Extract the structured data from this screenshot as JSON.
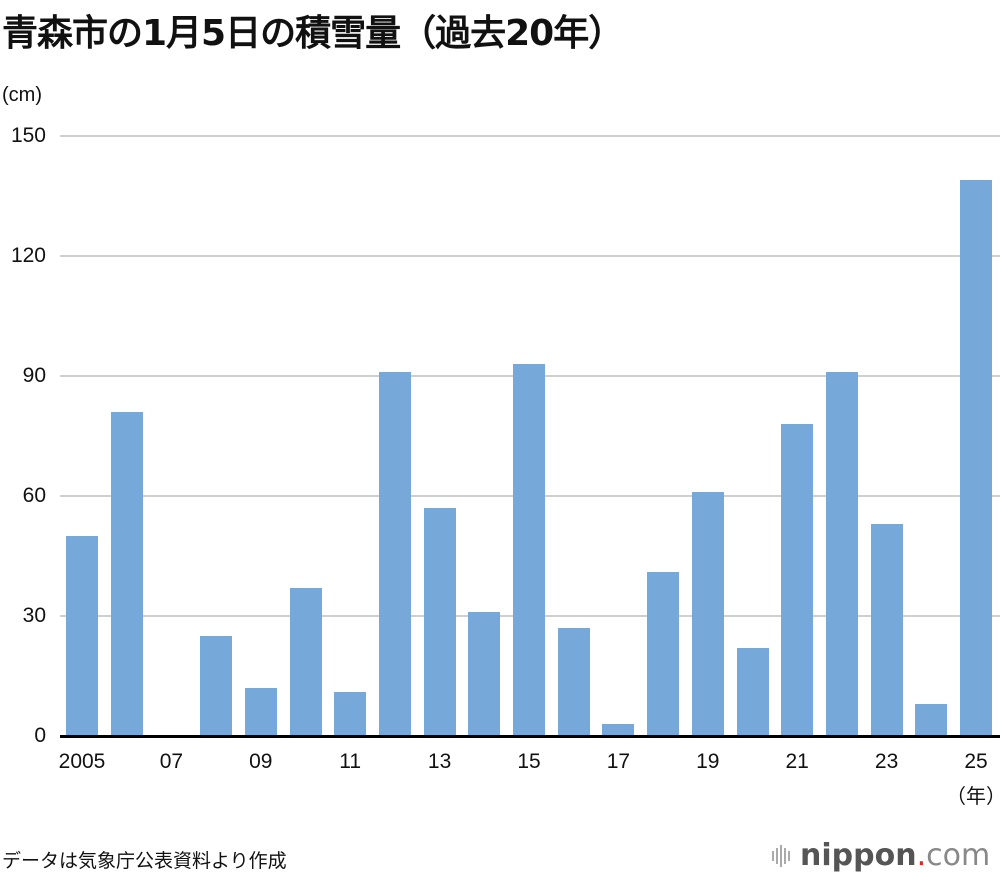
{
  "header": {
    "title": "青森市の1月5日の積雪量（過去20年）",
    "y_unit": "(cm)",
    "x_unit": "（年）"
  },
  "footer": {
    "source": "データは気象庁公表資料より作成",
    "logo_main": "nippon",
    "logo_dot": ".",
    "logo_suffix": "com"
  },
  "colors": {
    "bar": "#76a8d9",
    "grid": "#cfcfcf",
    "axis": "#000000",
    "logo_dot": "#e0262b"
  },
  "chart_data": {
    "type": "bar",
    "title": "青森市の1月5日の積雪量（過去20年）",
    "xlabel": "（年）",
    "ylabel": "(cm)",
    "ylim": [
      0,
      150
    ],
    "yticks": [
      0,
      30,
      60,
      90,
      120,
      150
    ],
    "grid": true,
    "legend": "none",
    "categories": [
      "2005",
      "2006",
      "2007",
      "2008",
      "2009",
      "2010",
      "2011",
      "2012",
      "2013",
      "2014",
      "2015",
      "2016",
      "2017",
      "2018",
      "2019",
      "2020",
      "2021",
      "2022",
      "2023",
      "2024",
      "2025"
    ],
    "xtick_labels": [
      "2005",
      "07",
      "09",
      "11",
      "13",
      "15",
      "17",
      "19",
      "21",
      "23",
      "25"
    ],
    "values": [
      50,
      81,
      0,
      25,
      12,
      37,
      11,
      91,
      57,
      31,
      93,
      27,
      3,
      41,
      61,
      22,
      78,
      91,
      53,
      8,
      139
    ]
  }
}
